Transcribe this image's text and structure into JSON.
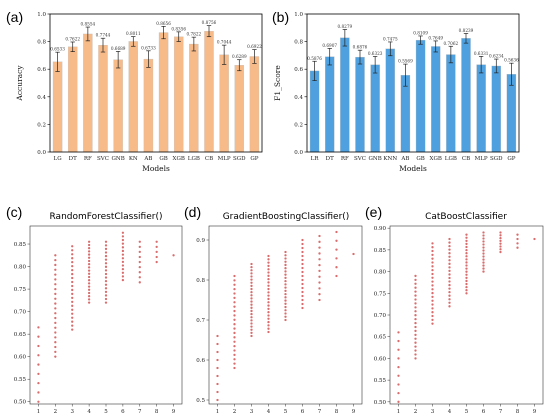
{
  "colors": {
    "orange": "#f7bb8a",
    "blue": "#4fa0de",
    "marker": "#d96d6d"
  },
  "charts": [
    {
      "panel_label": "(a)",
      "type": "bar",
      "ylabel": "Accuracy",
      "xlabel": "Models",
      "ylim": [
        0.0,
        1.0
      ],
      "yticks": [
        "0.0",
        "0.2",
        "0.4",
        "0.6",
        "0.8",
        "1.0"
      ],
      "color": "#f7bb8a",
      "categories": [
        "LG",
        "DT",
        "RF",
        "SVC",
        "GNB",
        "KN",
        "AB",
        "GB",
        "XGB",
        "LGB",
        "CB",
        "MLP",
        "SGD",
        "GP"
      ],
      "values": [
        0.6533,
        0.7622,
        0.8554,
        0.7744,
        0.6689,
        0.8011,
        0.6733,
        0.8656,
        0.8356,
        0.7822,
        0.8756,
        0.7044,
        0.6289,
        0.6922
      ],
      "labels": [
        "0.6533",
        "0.7622",
        "0.8554",
        "0.7744",
        "0.6689",
        "0.8011",
        "0.6733",
        "0.8656",
        "0.8356",
        "0.7822",
        "0.8756",
        "0.7044",
        "0.6289",
        "0.6922"
      ],
      "errors": [
        0.07,
        0.035,
        0.05,
        0.05,
        0.06,
        0.035,
        0.06,
        0.045,
        0.035,
        0.05,
        0.04,
        0.07,
        0.04,
        0.05
      ]
    },
    {
      "panel_label": "(b)",
      "type": "bar",
      "ylabel": "F1_Score",
      "xlabel": "Models",
      "ylim": [
        0.0,
        1.0
      ],
      "yticks": [
        "0.0",
        "0.2",
        "0.4",
        "0.6",
        "0.8",
        "1.0"
      ],
      "color": "#4fa0de",
      "categories": [
        "LR",
        "DT",
        "RF",
        "SVC",
        "GNB",
        "KNN",
        "AB",
        "GB",
        "XGB",
        "LGB",
        "CB",
        "MLP",
        "SGD",
        "GP"
      ],
      "values": [
        0.5876,
        0.6907,
        0.8279,
        0.6876,
        0.6323,
        0.7475,
        0.5569,
        0.8109,
        0.7649,
        0.7062,
        0.8239,
        0.6331,
        0.6234,
        0.5636
      ],
      "labels": [
        "0.5876",
        "0.6907",
        "0.8279",
        "0.6876",
        "0.6323",
        "0.7475",
        "0.5569",
        "0.8109",
        "0.7649",
        "0.7062",
        "0.8239",
        "0.6331",
        "0.6234",
        "0.5636"
      ],
      "errors": [
        0.07,
        0.06,
        0.06,
        0.05,
        0.06,
        0.05,
        0.08,
        0.03,
        0.04,
        0.06,
        0.035,
        0.06,
        0.05,
        0.08
      ]
    },
    {
      "panel_label": "(c)",
      "type": "scatter",
      "title": "RandomForestClassifier()",
      "xlim": [
        0.5,
        9.5
      ],
      "ylim": [
        0.495,
        0.89
      ],
      "xticks": [
        "1",
        "2",
        "3",
        "4",
        "5",
        "6",
        "7",
        "8",
        "9"
      ],
      "yticks": [
        0.5,
        0.55,
        0.6,
        0.65,
        0.7,
        0.75,
        0.8,
        0.85
      ],
      "ytick_labels": [
        "0.50",
        "0.55",
        "0.60",
        "0.65",
        "0.70",
        "0.75",
        "0.80",
        "0.85"
      ],
      "columns": [
        {
          "x": 1,
          "min": 0.5,
          "max": 0.665,
          "n": 9
        },
        {
          "x": 2,
          "min": 0.6,
          "max": 0.825,
          "n": 22
        },
        {
          "x": 3,
          "min": 0.66,
          "max": 0.845,
          "n": 22
        },
        {
          "x": 4,
          "min": 0.72,
          "max": 0.855,
          "n": 20
        },
        {
          "x": 5,
          "min": 0.72,
          "max": 0.855,
          "n": 18
        },
        {
          "x": 6,
          "min": 0.77,
          "max": 0.875,
          "n": 14
        },
        {
          "x": 7,
          "min": 0.765,
          "max": 0.855,
          "n": 9
        },
        {
          "x": 8,
          "min": 0.81,
          "max": 0.855,
          "n": 5
        },
        {
          "x": 9,
          "min": 0.825,
          "max": 0.825,
          "n": 1
        }
      ]
    },
    {
      "panel_label": "(d)",
      "type": "scatter",
      "title": "GradientBoostingClassifier()",
      "xlim": [
        0.5,
        9.5
      ],
      "ylim": [
        0.49,
        0.935
      ],
      "xticks": [
        "1",
        "2",
        "3",
        "4",
        "5",
        "6",
        "7",
        "8",
        "9"
      ],
      "yticks": [
        0.5,
        0.6,
        0.7,
        0.8,
        0.9
      ],
      "ytick_labels": [
        "0.5",
        "0.6",
        "0.7",
        "0.8",
        "0.9"
      ],
      "columns": [
        {
          "x": 1,
          "min": 0.5,
          "max": 0.66,
          "n": 9
        },
        {
          "x": 2,
          "min": 0.58,
          "max": 0.81,
          "n": 22
        },
        {
          "x": 3,
          "min": 0.66,
          "max": 0.84,
          "n": 24
        },
        {
          "x": 4,
          "min": 0.67,
          "max": 0.86,
          "n": 24
        },
        {
          "x": 5,
          "min": 0.7,
          "max": 0.87,
          "n": 22
        },
        {
          "x": 6,
          "min": 0.73,
          "max": 0.9,
          "n": 18
        },
        {
          "x": 7,
          "min": 0.75,
          "max": 0.91,
          "n": 12
        },
        {
          "x": 8,
          "min": 0.81,
          "max": 0.92,
          "n": 6
        },
        {
          "x": 9,
          "min": 0.865,
          "max": 0.865,
          "n": 1
        }
      ]
    },
    {
      "panel_label": "(e)",
      "type": "scatter",
      "title": "CatBoostClassifier",
      "xlim": [
        0.5,
        9.5
      ],
      "ylim": [
        0.495,
        0.905
      ],
      "xticks": [
        "1",
        "2",
        "3",
        "4",
        "5",
        "6",
        "7",
        "8",
        "9"
      ],
      "yticks": [
        0.5,
        0.55,
        0.6,
        0.65,
        0.7,
        0.75,
        0.8,
        0.85,
        0.9
      ],
      "ytick_labels": [
        "0.50",
        "0.55",
        "0.60",
        "0.65",
        "0.70",
        "0.75",
        "0.80",
        "0.85",
        "0.90"
      ],
      "columns": [
        {
          "x": 1,
          "min": 0.5,
          "max": 0.66,
          "n": 9
        },
        {
          "x": 2,
          "min": 0.6,
          "max": 0.79,
          "n": 22
        },
        {
          "x": 3,
          "min": 0.68,
          "max": 0.865,
          "n": 22
        },
        {
          "x": 4,
          "min": 0.72,
          "max": 0.875,
          "n": 20
        },
        {
          "x": 5,
          "min": 0.75,
          "max": 0.885,
          "n": 20
        },
        {
          "x": 6,
          "min": 0.8,
          "max": 0.89,
          "n": 14
        },
        {
          "x": 7,
          "min": 0.845,
          "max": 0.89,
          "n": 8
        },
        {
          "x": 8,
          "min": 0.855,
          "max": 0.885,
          "n": 4
        },
        {
          "x": 9,
          "min": 0.875,
          "max": 0.875,
          "n": 1
        }
      ]
    }
  ]
}
